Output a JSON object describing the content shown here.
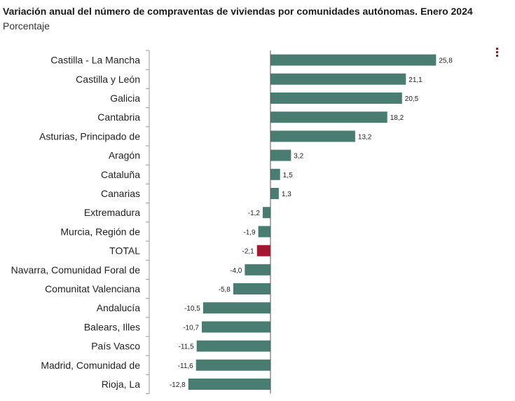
{
  "header": {
    "title": "Variación anual del número de compraventas de viviendas por comunidades autónomas. Enero 2024",
    "subtitle": "Porcentaje"
  },
  "menu": {
    "icon": "more-vertical-icon"
  },
  "colors": {
    "bar": "#4a7d72",
    "highlight": "#a3182e"
  },
  "chart_data": {
    "type": "bar",
    "orientation": "horizontal",
    "title": "Variación anual del número de compraventas de viviendas por comunidades autónomas. Enero 2024",
    "subtitle": "Porcentaje",
    "xlim": [
      -15,
      29
    ],
    "grid": false,
    "highlight_category": "TOTAL",
    "categories": [
      "Castilla - La Mancha",
      "Castilla y León",
      "Galicia",
      "Cantabria",
      "Asturias, Principado de",
      "Aragón",
      "Cataluña",
      "Canarias",
      "Extremadura",
      "Murcia, Región de",
      "TOTAL",
      "Navarra, Comunidad Foral de",
      "Comunitat Valenciana",
      "Andalucía",
      "Balears, Illes",
      "País Vasco",
      "Madrid, Comunidad de",
      "Rioja, La"
    ],
    "values": [
      25.8,
      21.1,
      20.5,
      18.2,
      13.2,
      3.2,
      1.5,
      1.3,
      -1.2,
      -1.9,
      -2.1,
      -4.0,
      -5.8,
      -10.5,
      -10.7,
      -11.5,
      -11.6,
      -12.8
    ],
    "value_labels": [
      "25,8",
      "21,1",
      "20,5",
      "18,2",
      "13,2",
      "3,2",
      "1,5",
      "1,3",
      "-1,2",
      "-1,9",
      "-2,1",
      "-4,0",
      "-5,8",
      "-10,5",
      "-10,7",
      "-11,5",
      "-11,6",
      "-12,8"
    ]
  }
}
